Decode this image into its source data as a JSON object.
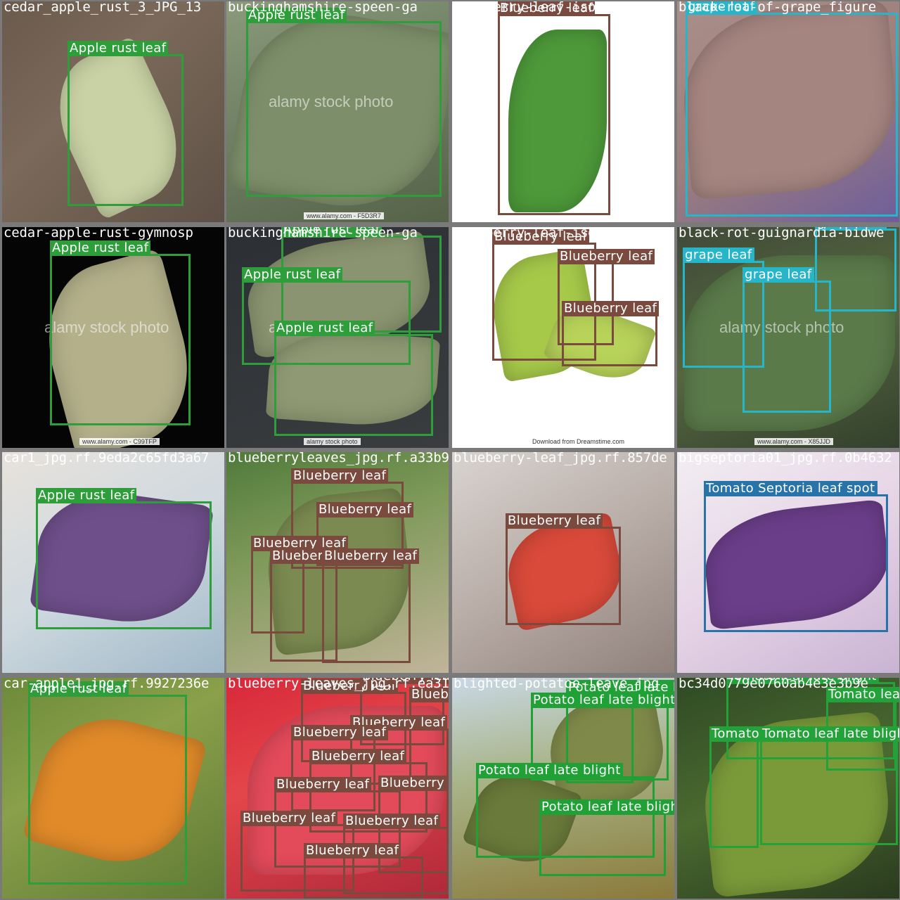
{
  "colors": {
    "apple_rust": "#2e9e3a",
    "blueberry": "#7b4a3e",
    "grape": "#27b5c9",
    "septoria": "#2873a8",
    "potato": "#1fa135",
    "tomato": "#24a23a",
    "grid_bg": "#7a7a7a"
  },
  "tiles": [
    {
      "filename": "cedar_apple_rust_3_JPG_13",
      "bg": "linear-gradient(135deg,#6a5a4d 0%,#7b6a5a 40%,#5e5046 100%)",
      "leaves": [
        {
          "c": "#c9d2a4",
          "l": 90,
          "t": 70,
          "w": 150,
          "h": 220,
          "r": -25
        }
      ],
      "boxes": [
        {
          "label": "Apple rust leaf",
          "cls": "apple_rust",
          "l": 93,
          "t": 75,
          "w": 165,
          "h": 216
        }
      ]
    },
    {
      "filename": "buckinghamshire-speen-ga",
      "bg": "linear-gradient(160deg,#8a9a7a 0%,#6f8064 45%,#556248 100%)",
      "leaves": [
        {
          "c": "#7d8f6a",
          "l": 20,
          "t": 20,
          "w": 290,
          "h": 270,
          "r": 10
        }
      ],
      "credit": "www.alamy.com - F5D3R7",
      "watermark": "alamy stock photo",
      "boxes": [
        {
          "label": "Apple rust leaf",
          "cls": "apple_rust",
          "l": 28,
          "t": 28,
          "w": 278,
          "h": 250
        }
      ]
    },
    {
      "filename": "blueberry-leaf-isolated-wh",
      "bg": "linear-gradient(#ffffff,#ffffff)",
      "leaves": [
        {
          "c": "#4e9a3a",
          "l": 80,
          "t": 40,
          "w": 140,
          "h": 260,
          "r": 0
        }
      ],
      "boxes": [
        {
          "label": "Blueberry leaf",
          "cls": "blueberry",
          "l": 65,
          "t": 18,
          "w": 160,
          "h": 286
        }
      ]
    },
    {
      "filename": "black-rot-of-grape_figure",
      "bg": "linear-gradient(150deg,#a98f8a 0%,#9d7f7c 50%,#6e5d9c 100%)",
      "leaves": [
        {
          "c": "#a58580",
          "l": 10,
          "t": 10,
          "w": 300,
          "h": 260,
          "r": -5
        }
      ],
      "boxes": [
        {
          "label": "grape leaf",
          "cls": "grape",
          "l": 12,
          "t": 16,
          "w": 302,
          "h": 290
        }
      ]
    },
    {
      "filename": "cedar-apple-rust-gymnosp",
      "bg": "linear-gradient(#050505,#050505)",
      "leaves": [
        {
          "c": "#b3b08a",
          "l": 70,
          "t": 50,
          "w": 190,
          "h": 260,
          "r": -15
        }
      ],
      "credit": "www.alamy.com - C99TFP",
      "watermark": "alamy stock photo",
      "boxes": [
        {
          "label": "Apple rust leaf",
          "cls": "apple_rust",
          "l": 68,
          "t": 38,
          "w": 200,
          "h": 244
        }
      ]
    },
    {
      "filename": "buckinghamshire-speen-ga",
      "bg": "linear-gradient(160deg,#2c2f33 0%,#3a3d40 100%)",
      "leaves": [
        {
          "c": "#8a9470",
          "l": 30,
          "t": 20,
          "w": 260,
          "h": 150,
          "r": -8
        },
        {
          "c": "#8f9a74",
          "l": 60,
          "t": 150,
          "w": 240,
          "h": 130,
          "r": 4
        }
      ],
      "credit": "alamy stock photo",
      "watermark": "alamy",
      "boxes": [
        {
          "label": "Apple rust leaf",
          "cls": "apple_rust",
          "l": 78,
          "t": 12,
          "w": 228,
          "h": 138
        },
        {
          "label": "Apple rust leaf",
          "cls": "apple_rust",
          "l": 22,
          "t": 76,
          "w": 240,
          "h": 120
        },
        {
          "label": "Apple rust leaf",
          "cls": "apple_rust",
          "l": 68,
          "t": 152,
          "w": 226,
          "h": 145
        }
      ]
    },
    {
      "filename": "blueberry-leaf-isolated-wh",
      "bg": "linear-gradient(#ffffff,#ffffff)",
      "leaves": [
        {
          "c": "#a6c94a",
          "l": 60,
          "t": 40,
          "w": 140,
          "h": 170,
          "r": -10
        },
        {
          "c": "#b8d35a",
          "l": 140,
          "t": 120,
          "w": 140,
          "h": 90,
          "r": 20
        }
      ],
      "credit": "Download from Dreamstime.com",
      "boxes": [
        {
          "label": "Blueberry leaf",
          "cls": "blueberry",
          "l": 57,
          "t": 22,
          "w": 148,
          "h": 168
        },
        {
          "label": "Blueberry leaf",
          "cls": "blueberry",
          "l": 150,
          "t": 50,
          "w": 80,
          "h": 118
        },
        {
          "label": "Blueberry leaf",
          "cls": "blueberry",
          "l": 156,
          "t": 124,
          "w": 136,
          "h": 74
        }
      ]
    },
    {
      "filename": "black-rot-guignardia-bidwe",
      "bg": "linear-gradient(160deg,#3f4a38 0%,#55663f 50%,#33402d 100%)",
      "leaves": [
        {
          "c": "#5a7a4a",
          "l": 10,
          "t": 40,
          "w": 300,
          "h": 250,
          "r": 0
        }
      ],
      "credit": "www.alamy.com - X85JJD",
      "watermark": "alamy stock photo",
      "boxes": [
        {
          "label": "grape leaf",
          "cls": "grape",
          "l": 196,
          "t": 2,
          "w": 116,
          "h": 118
        },
        {
          "label": "grape leaf",
          "cls": "grape",
          "l": 8,
          "t": 48,
          "w": 116,
          "h": 152
        },
        {
          "label": "grape leaf",
          "cls": "grape",
          "l": 93,
          "t": 76,
          "w": 126,
          "h": 188
        }
      ]
    },
    {
      "filename": "car1_jpg.rf.9eda2c65fd3a67",
      "bg": "linear-gradient(150deg,#e8e2dc 0%,#cfd9df 50%,#9fb8c8 100%)",
      "leaves": [
        {
          "c": "#6e4f8a",
          "l": 50,
          "t": 60,
          "w": 240,
          "h": 180,
          "r": 8
        }
      ],
      "boxes": [
        {
          "label": "Apple rust leaf",
          "cls": "apple_rust",
          "l": 48,
          "t": 70,
          "w": 250,
          "h": 182
        }
      ]
    },
    {
      "filename": "blueberryleaves_jpg.rf.a33b9",
      "bg": "linear-gradient(160deg,#4f7a3a 0%,#7f9a5a 40%,#c2b49a 100%)",
      "leaves": [
        {
          "c": "#7a8a50",
          "l": 60,
          "t": 60,
          "w": 200,
          "h": 220,
          "r": -6
        }
      ],
      "boxes": [
        {
          "label": "Blueberry leaf",
          "cls": "blueberry",
          "l": 92,
          "t": 42,
          "w": 160,
          "h": 124
        },
        {
          "label": "Blueberry leaf",
          "cls": "blueberry",
          "l": 128,
          "t": 90,
          "w": 124,
          "h": 72
        },
        {
          "label": "Blueberry leaf",
          "cls": "blueberry",
          "l": 35,
          "t": 138,
          "w": 76,
          "h": 120
        },
        {
          "label": "Blueberry leaf",
          "cls": "blueberry",
          "l": 62,
          "t": 156,
          "w": 96,
          "h": 142
        },
        {
          "label": "Blueberry leaf",
          "cls": "blueberry",
          "l": 136,
          "t": 156,
          "w": 126,
          "h": 144
        }
      ]
    },
    {
      "filename": "blueberry-leaf_jpg.rf.857de",
      "bg": "linear-gradient(150deg,#d9d4d0 0%,#b8aca6 50%,#8f807a 100%)",
      "leaves": [
        {
          "c": "#d94a3a",
          "l": 80,
          "t": 100,
          "w": 160,
          "h": 140,
          "r": -12
        }
      ],
      "boxes": [
        {
          "label": "Blueberry leaf",
          "cls": "blueberry",
          "l": 76,
          "t": 106,
          "w": 164,
          "h": 140
        }
      ]
    },
    {
      "filename": "bigseptoria01_jpg.rf.0b4632",
      "bg": "linear-gradient(150deg,#f2eef2 0%,#e6d4e6 50%,#c9b3d3 100%)",
      "leaves": [
        {
          "c": "#6b3e8a",
          "l": 40,
          "t": 80,
          "w": 260,
          "h": 160,
          "r": -6
        }
      ],
      "boxes": [
        {
          "label": "Tomato Septoria leaf spot",
          "cls": "septoria",
          "l": 38,
          "t": 60,
          "w": 262,
          "h": 196
        }
      ]
    },
    {
      "filename": "car-apple1_jpg.rf.9927236e",
      "bg": "linear-gradient(150deg,#6c8a3a 0%,#8aa04a 40%,#5f7a34 100%)",
      "leaves": [
        {
          "c": "#e08a2a",
          "l": 50,
          "t": 60,
          "w": 220,
          "h": 200,
          "r": 15
        }
      ],
      "boxes": [
        {
          "label": "Apple rust leaf",
          "cls": "apple_rust",
          "l": 37,
          "t": 24,
          "w": 226,
          "h": 270
        }
      ]
    },
    {
      "filename": "blueberry-leaves_jpg.rf.ea31",
      "bg": "linear-gradient(160deg,#d8283a 0%,#e3464a 40%,#b0283a 100%)",
      "leaves": [
        {
          "c": "#e34a5a",
          "l": 30,
          "t": 40,
          "w": 280,
          "h": 240,
          "r": 0
        }
      ],
      "boxes": [
        {
          "label": "Blueberry leaf",
          "cls": "blueberry",
          "l": 106,
          "t": 20,
          "w": 150,
          "h": 100
        },
        {
          "label": "Blueberry leaf",
          "cls": "blueberry",
          "l": 190,
          "t": 6,
          "w": 120,
          "h": 90
        },
        {
          "label": "Blueberry leaf",
          "cls": "blueberry",
          "l": 260,
          "t": 32,
          "w": 60,
          "h": 120
        },
        {
          "label": "Blueberry leaf",
          "cls": "blueberry",
          "l": 176,
          "t": 72,
          "w": 140,
          "h": 80
        },
        {
          "label": "Blueberry leaf",
          "cls": "blueberry",
          "l": 92,
          "t": 86,
          "w": 120,
          "h": 104
        },
        {
          "label": "Blueberry leaf",
          "cls": "blueberry",
          "l": 118,
          "t": 120,
          "w": 168,
          "h": 100
        },
        {
          "label": "Blueberry leaf",
          "cls": "blueberry",
          "l": 68,
          "t": 160,
          "w": 180,
          "h": 110
        },
        {
          "label": "Blueberry leaf",
          "cls": "blueberry",
          "l": 216,
          "t": 158,
          "w": 100,
          "h": 120
        },
        {
          "label": "Blueberry leaf",
          "cls": "blueberry",
          "l": 20,
          "t": 208,
          "w": 162,
          "h": 96
        },
        {
          "label": "Blueberry leaf",
          "cls": "blueberry",
          "l": 166,
          "t": 212,
          "w": 150,
          "h": 96
        },
        {
          "label": "Blueberry leaf",
          "cls": "blueberry",
          "l": 110,
          "t": 254,
          "w": 170,
          "h": 60
        }
      ]
    },
    {
      "filename": "blighted-potatoe-leave_jpg",
      "bg": "linear-gradient(170deg,#c9d8e6 0%,#a9b58a 40%,#8a7a3a 100%)",
      "leaves": [
        {
          "c": "#7f8a4a",
          "l": 140,
          "t": 30,
          "w": 160,
          "h": 150,
          "r": -10
        },
        {
          "c": "#6a7a3a",
          "l": 30,
          "t": 140,
          "w": 140,
          "h": 120,
          "r": 20
        }
      ],
      "boxes": [
        {
          "label": "Potato leaf late blight",
          "cls": "potato",
          "l": 162,
          "t": 22,
          "w": 96,
          "h": 128
        },
        {
          "label": "Potato leaf late blight",
          "cls": "potato",
          "l": 112,
          "t": 40,
          "w": 196,
          "h": 106
        },
        {
          "label": "Potato leaf late blight",
          "cls": "potato",
          "l": 34,
          "t": 140,
          "w": 254,
          "h": 116
        },
        {
          "label": "Potato leaf late blight",
          "cls": "potato",
          "l": 124,
          "t": 192,
          "w": 180,
          "h": 90
        }
      ]
    },
    {
      "filename": "bc34d0779e0760ab4e3e3b9e",
      "bg": "linear-gradient(160deg,#2f4a24 0%,#4a6a30 50%,#2a3a1e 100%)",
      "leaves": [
        {
          "c": "#7a9a3a",
          "l": 40,
          "t": 60,
          "w": 260,
          "h": 240,
          "r": -6
        }
      ],
      "boxes": [
        {
          "label": "Tomato leaf late blight",
          "cls": "tomato",
          "l": 70,
          "t": 6,
          "w": 240,
          "h": 110
        },
        {
          "label": "Tomato leaf late blight",
          "cls": "tomato",
          "l": 212,
          "t": 32,
          "w": 100,
          "h": 100
        },
        {
          "label": "Tomato leaf late blight",
          "cls": "tomato",
          "l": 46,
          "t": 88,
          "w": 70,
          "h": 154
        },
        {
          "label": "Tomato leaf late blight",
          "cls": "tomato",
          "l": 118,
          "t": 88,
          "w": 196,
          "h": 150
        }
      ]
    }
  ]
}
